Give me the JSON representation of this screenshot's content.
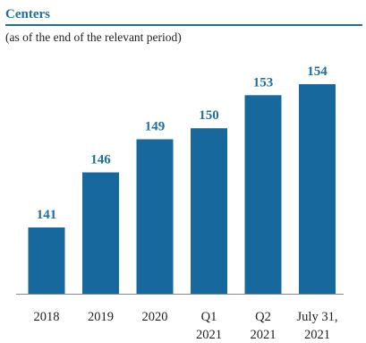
{
  "header": {
    "title": "Centers",
    "subtitle": "(as of the end of the relevant period)"
  },
  "chart_data": {
    "type": "bar",
    "categories": [
      [
        "2018"
      ],
      [
        "2019"
      ],
      [
        "2020"
      ],
      [
        "Q1",
        "2021"
      ],
      [
        "Q2",
        "2021"
      ],
      [
        "July 31,",
        "2021"
      ]
    ],
    "values": [
      141,
      146,
      149,
      150,
      153,
      154
    ],
    "bar_color": "#17699d",
    "label_color": "#1f6fa3",
    "baseline_color": "#8a8a8a",
    "legend": "none",
    "grid": false
  }
}
